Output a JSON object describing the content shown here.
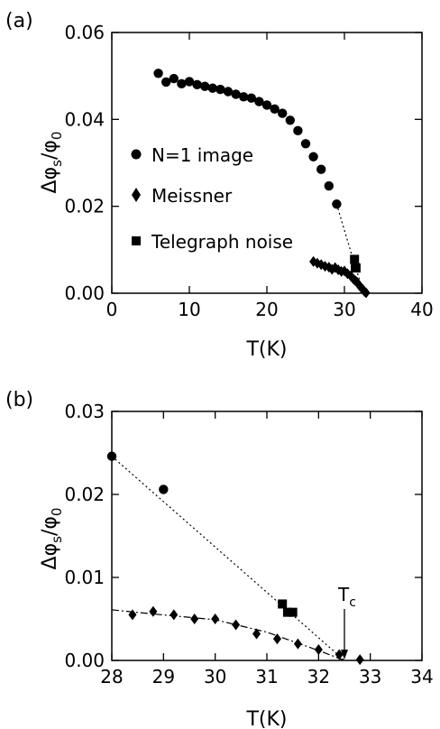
{
  "chart_data": [
    {
      "type": "scatter",
      "panel_label": "(a)",
      "xlabel": "T(K)",
      "ylabel": "Δφs/φ0",
      "xlim": [
        0,
        40
      ],
      "ylim": [
        0,
        0.06
      ],
      "xticks": [
        0,
        10,
        20,
        30,
        40
      ],
      "yticks": [
        0.0,
        0.02,
        0.04,
        0.06
      ],
      "xtick_labels": [
        "0",
        "10",
        "20",
        "30",
        "40"
      ],
      "ytick_labels": [
        "0.00",
        "0.02",
        "0.04",
        "0.06"
      ],
      "grid": false,
      "legend_position": "center-left",
      "series": [
        {
          "name": "N=1 image",
          "marker": "circle",
          "x": [
            6.0,
            7.0,
            8.0,
            9.0,
            10.0,
            11.0,
            12.0,
            13.0,
            14.0,
            15.0,
            16.0,
            17.0,
            18.0,
            19.0,
            20.0,
            21.0,
            22.0,
            23.0,
            24.0,
            25.0,
            26.0,
            27.0,
            28.0,
            29.0
          ],
          "y": [
            0.0506,
            0.0486,
            0.0494,
            0.0482,
            0.0487,
            0.048,
            0.0476,
            0.0472,
            0.0469,
            0.0464,
            0.0458,
            0.0452,
            0.0449,
            0.0441,
            0.0433,
            0.0424,
            0.0414,
            0.0398,
            0.0374,
            0.0344,
            0.0314,
            0.0285,
            0.0247,
            0.0205
          ]
        },
        {
          "name": "Meissner",
          "marker": "diamond",
          "x": [
            26.0,
            26.5,
            27.0,
            27.5,
            28.0,
            28.4,
            28.8,
            29.2,
            29.6,
            30.0,
            30.4,
            30.8,
            31.0,
            31.2,
            31.4,
            31.6,
            31.8,
            32.0,
            32.2,
            32.4,
            32.6,
            32.8
          ],
          "y": [
            0.0073,
            0.0069,
            0.0066,
            0.0062,
            0.006,
            0.0055,
            0.0059,
            0.0054,
            0.005,
            0.0051,
            0.0045,
            0.004,
            0.0036,
            0.0032,
            0.0029,
            0.0026,
            0.0021,
            0.0016,
            0.0012,
            0.0008,
            0.0004,
            0.0001
          ]
        },
        {
          "name": "Telegraph noise",
          "marker": "square",
          "x": [
            31.3,
            31.4,
            31.5
          ],
          "y": [
            0.0078,
            0.0059,
            0.0058
          ]
        }
      ]
    },
    {
      "type": "scatter",
      "panel_label": "(b)",
      "xlabel": "T(K)",
      "ylabel": "Δφs/φ0",
      "xlim": [
        28,
        34
      ],
      "ylim": [
        0,
        0.03
      ],
      "xticks": [
        28,
        29,
        30,
        31,
        32,
        33,
        34
      ],
      "yticks": [
        0.0,
        0.01,
        0.02,
        0.03
      ],
      "xtick_labels": [
        "28",
        "29",
        "30",
        "31",
        "32",
        "33",
        "34"
      ],
      "ytick_labels": [
        "0.00",
        "0.01",
        "0.02",
        "0.03"
      ],
      "grid": false,
      "annotation": {
        "text": "Tc",
        "x": 32.5,
        "y": 0.0,
        "style": "arrow"
      },
      "series": [
        {
          "name": "N=1 image",
          "marker": "circle",
          "x": [
            28.0,
            29.0
          ],
          "y": [
            0.0246,
            0.0206
          ]
        },
        {
          "name": "Meissner",
          "marker": "diamond",
          "x": [
            28.4,
            28.8,
            29.2,
            29.6,
            30.0,
            30.4,
            30.8,
            31.2,
            31.6,
            32.0,
            32.4,
            32.8
          ],
          "y": [
            0.0055,
            0.0059,
            0.0055,
            0.005,
            0.005,
            0.0043,
            0.0032,
            0.0026,
            0.002,
            0.0013,
            0.0007,
            0.0001
          ]
        },
        {
          "name": "Telegraph noise",
          "marker": "square",
          "x": [
            31.3,
            31.4,
            31.5
          ],
          "y": [
            0.0068,
            0.0058,
            0.0058
          ]
        }
      ],
      "guide_lines": [
        {
          "style": "dotted",
          "points": [
            [
              28.0,
              0.0246
            ],
            [
              32.5,
              0.0
            ]
          ]
        },
        {
          "style": "dashdot",
          "points": [
            [
              28.0,
              0.0061
            ],
            [
              28.8,
              0.0056
            ],
            [
              30.0,
              0.0049
            ],
            [
              31.0,
              0.0034
            ],
            [
              32.0,
              0.0012
            ],
            [
              32.5,
              0.0
            ]
          ]
        }
      ]
    }
  ],
  "extra_lines_a": [
    {
      "style": "dotted",
      "points": [
        [
          29.0,
          0.0205
        ],
        [
          31.0,
          0.0085
        ],
        [
          32.5,
          0.0
        ]
      ]
    },
    {
      "style": "dashdot",
      "points": [
        [
          26.0,
          0.0072
        ],
        [
          29.0,
          0.0056
        ],
        [
          31.0,
          0.0038
        ],
        [
          32.5,
          0.0
        ]
      ]
    }
  ],
  "colors": {
    "ink": "#000000",
    "background": "#ffffff"
  }
}
